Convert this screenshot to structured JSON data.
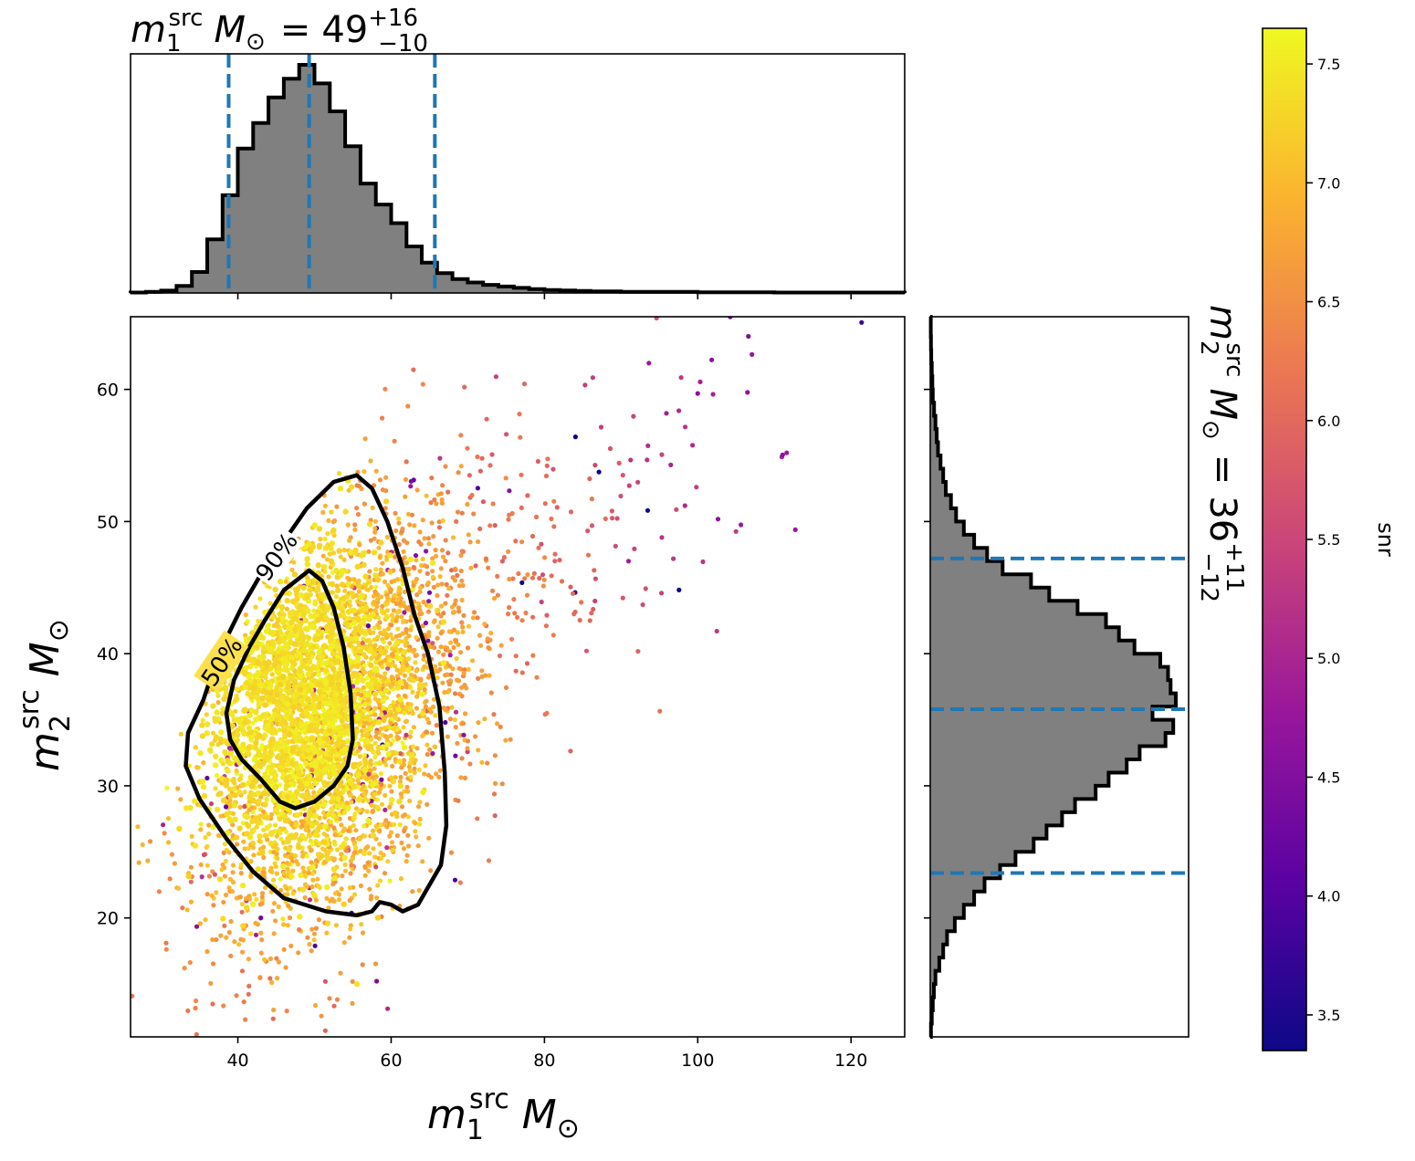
{
  "chart_data": {
    "type": "scatter",
    "title_top": {
      "var": "m",
      "sub": "1",
      "sup": "src",
      "unit": "M",
      "unit_sub": "⊙",
      "value": "49",
      "plus": "+16",
      "minus": "−10"
    },
    "title_right": {
      "var": "m",
      "sub": "2",
      "sup": "src",
      "unit": "M",
      "unit_sub": "⊙",
      "value": "36",
      "plus": "+11",
      "minus": "−12"
    },
    "xlabel": {
      "var": "m",
      "sub": "1",
      "sup": "src",
      "unit": "M",
      "unit_sub": "⊙"
    },
    "ylabel": {
      "var": "m",
      "sub": "2",
      "sup": "src",
      "unit": "M",
      "unit_sub": "⊙"
    },
    "colorbar_label": "snr",
    "xlim": [
      26,
      127
    ],
    "ylim": [
      11,
      65.5
    ],
    "clim": [
      3.35,
      7.65
    ],
    "x_ticks": [
      "40",
      "60",
      "80",
      "100",
      "120"
    ],
    "y_ticks": [
      "20",
      "30",
      "40",
      "50",
      "60"
    ],
    "colorbar_ticks": [
      "3.5",
      "4.0",
      "4.5",
      "5.0",
      "5.5",
      "6.0",
      "6.5",
      "7.0",
      "7.5"
    ],
    "colormap": "plasma",
    "colormap_stops": [
      "#0d0887",
      "#5b02a3",
      "#9a179b",
      "#cb4678",
      "#eb7852",
      "#fbb32f",
      "#eff821"
    ],
    "contour_labels": [
      "50%",
      "90%"
    ],
    "contours": [
      {
        "level": "50%",
        "points": [
          [
            49.3,
            46.3
          ],
          [
            51.0,
            45.5
          ],
          [
            52.5,
            43.5
          ],
          [
            53.8,
            40.5
          ],
          [
            54.7,
            37.0
          ],
          [
            55.0,
            33.5
          ],
          [
            54.3,
            31.5
          ],
          [
            52.5,
            30.0
          ],
          [
            50.0,
            28.8
          ],
          [
            47.5,
            28.3
          ],
          [
            45.5,
            28.8
          ],
          [
            43.0,
            30.5
          ],
          [
            40.5,
            32.0
          ],
          [
            39.0,
            33.5
          ],
          [
            38.5,
            35.5
          ],
          [
            39.5,
            38.0
          ],
          [
            41.5,
            40.5
          ],
          [
            43.5,
            42.5
          ],
          [
            46.0,
            44.8
          ],
          [
            49.3,
            46.3
          ]
        ]
      },
      {
        "level": "90%",
        "points": [
          [
            55.5,
            53.5
          ],
          [
            57.5,
            52.5
          ],
          [
            59.5,
            50.0
          ],
          [
            61.5,
            46.5
          ],
          [
            63.0,
            43.0
          ],
          [
            64.8,
            40.0
          ],
          [
            66.3,
            36.0
          ],
          [
            67.0,
            31.0
          ],
          [
            67.2,
            27.0
          ],
          [
            66.5,
            24.0
          ],
          [
            65.0,
            22.5
          ],
          [
            63.5,
            21.0
          ],
          [
            61.5,
            20.5
          ],
          [
            60.0,
            21.0
          ],
          [
            58.5,
            21.2
          ],
          [
            57.5,
            20.5
          ],
          [
            55.5,
            20.2
          ],
          [
            51.5,
            20.5
          ],
          [
            46.0,
            21.5
          ],
          [
            42.0,
            23.5
          ],
          [
            38.5,
            26.0
          ],
          [
            35.0,
            29.0
          ],
          [
            33.2,
            31.5
          ],
          [
            33.5,
            34.0
          ],
          [
            35.5,
            36.5
          ],
          [
            37.5,
            40.0
          ],
          [
            40.5,
            43.5
          ],
          [
            43.0,
            46.0
          ],
          [
            46.0,
            48.5
          ],
          [
            49.0,
            51.0
          ],
          [
            52.5,
            53.0
          ],
          [
            55.5,
            53.5
          ]
        ]
      }
    ],
    "hist_top": {
      "bin_edges": [
        26,
        28,
        30,
        32,
        34,
        36,
        38,
        40,
        42,
        44,
        46,
        48,
        50,
        52,
        54,
        56,
        58,
        60,
        62,
        64,
        66,
        68,
        70,
        72,
        74,
        76,
        78,
        80,
        82,
        84,
        86,
        90,
        100,
        110,
        127
      ],
      "counts": [
        0.002,
        0.005,
        0.01,
        0.03,
        0.09,
        0.23,
        0.42,
        0.62,
        0.73,
        0.84,
        0.92,
        0.98,
        0.9,
        0.78,
        0.63,
        0.47,
        0.38,
        0.3,
        0.2,
        0.13,
        0.085,
        0.06,
        0.045,
        0.035,
        0.028,
        0.022,
        0.017,
        0.013,
        0.011,
        0.009,
        0.007,
        0.005,
        0.003,
        0.002
      ],
      "quantile_lines": [
        38.8,
        49.3,
        65.7
      ]
    },
    "hist_right": {
      "bin_edges": [
        11,
        12,
        13,
        14,
        15,
        16,
        17,
        18,
        19,
        20,
        21,
        22,
        23,
        24,
        25,
        26,
        27,
        28,
        29,
        30,
        31,
        32,
        33,
        34,
        35,
        36,
        37,
        38,
        39,
        40,
        41,
        42,
        43,
        44,
        45,
        46,
        47,
        48,
        49,
        50,
        51,
        52,
        53,
        54,
        55,
        56,
        57,
        58,
        59,
        60,
        61,
        62,
        63,
        64,
        65.5
      ],
      "counts": [
        0.003,
        0.006,
        0.01,
        0.014,
        0.02,
        0.035,
        0.05,
        0.065,
        0.095,
        0.13,
        0.17,
        0.21,
        0.27,
        0.33,
        0.4,
        0.45,
        0.51,
        0.56,
        0.64,
        0.69,
        0.76,
        0.81,
        0.91,
        0.94,
        0.86,
        0.95,
        0.93,
        0.92,
        0.89,
        0.79,
        0.73,
        0.68,
        0.57,
        0.46,
        0.39,
        0.28,
        0.22,
        0.17,
        0.13,
        0.1,
        0.08,
        0.06,
        0.05,
        0.04,
        0.03,
        0.025,
        0.02,
        0.015,
        0.01,
        0.008,
        0.006,
        0.004,
        0.003,
        0.002
      ],
      "quantile_lines": [
        23.4,
        35.8,
        47.2
      ]
    }
  }
}
